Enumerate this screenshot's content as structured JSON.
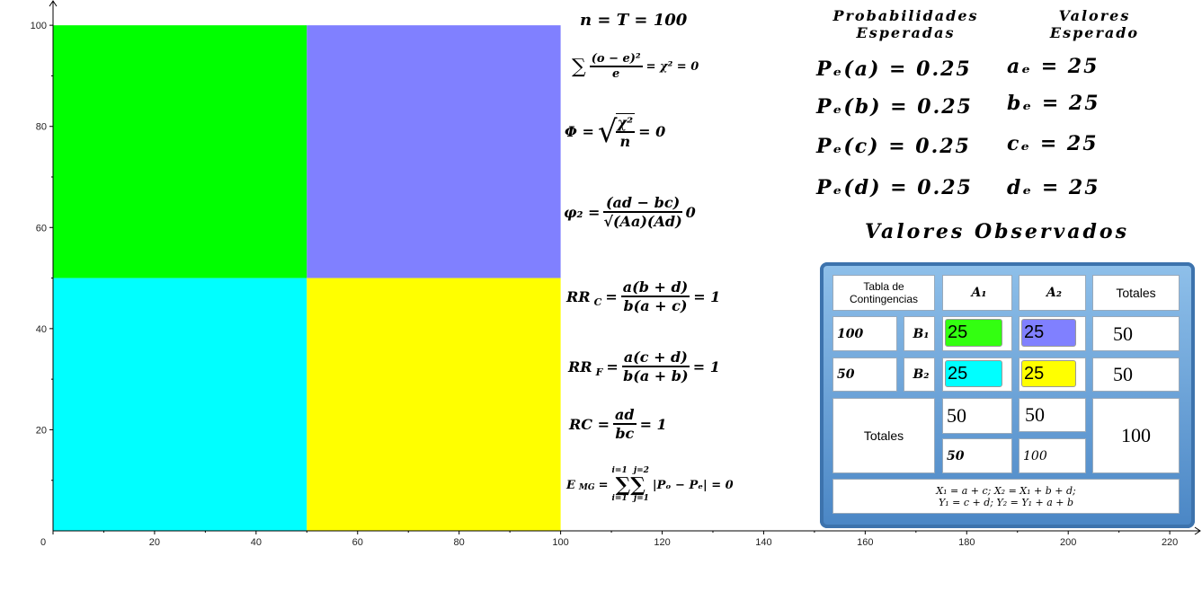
{
  "graphics": {
    "xlim": [
      0,
      226
    ],
    "ylim": [
      0,
      105
    ],
    "xticks": [
      0,
      20,
      40,
      60,
      80,
      100,
      120,
      140,
      160,
      180,
      200,
      220
    ],
    "yticks": [
      20,
      40,
      60,
      80,
      100
    ],
    "rects": [
      {
        "x": [
          0,
          50
        ],
        "y": [
          50,
          100
        ],
        "color": "#00ff00"
      },
      {
        "x": [
          50,
          100
        ],
        "y": [
          50,
          100
        ],
        "color": "#8080ff"
      },
      {
        "x": [
          0,
          50
        ],
        "y": [
          0,
          50
        ],
        "color": "#00ffff"
      },
      {
        "x": [
          50,
          100
        ],
        "y": [
          0,
          50
        ],
        "color": "#ffff00"
      }
    ]
  },
  "formulas": [
    {
      "text": "n = T = 100"
    },
    {
      "pre": "∑",
      "num": "(o − e)²",
      "den": "e",
      "post": "= χ² = 0"
    },
    {
      "pre": "Φ =",
      "root": "√",
      "num": "χ²",
      "den": "n",
      "post": "= 0"
    },
    {
      "pre": "φ₂ =",
      "num": "(ad − bc)",
      "den": "√(Aa)(Ad)",
      "post": "0"
    },
    {
      "pre": "RR",
      "sub": "C",
      "mid": "=",
      "num": "a(b + d)",
      "den": "b(a + c)",
      "post": "= 1"
    },
    {
      "pre": "RR",
      "sub": "F",
      "mid": "=",
      "num": "a(c + d)",
      "den": "b(a + b)",
      "post": "= 1"
    },
    {
      "pre": "RC =",
      "num": "ad",
      "den": "bc",
      "post": "= 1"
    },
    {
      "pre": "E",
      "sub": "MG",
      "mid": "=",
      "top": [
        "i=1",
        "j=2"
      ],
      "sum": "∑∑",
      "bottom": [
        "i=1",
        "j=1"
      ],
      "post": "|Pₒ − Pₑ| = 0"
    }
  ],
  "expected": {
    "prob_title": "Probabilidades Esperadas",
    "value_title": "Valores Esperado",
    "probs": [
      "Pₑ(a) = 0.25",
      "Pₑ(b) = 0.25",
      "Pₑ(c) = 0.25",
      "Pₑ(d) = 0.25"
    ],
    "values": [
      "aₑ = 25",
      "bₑ = 25",
      "cₑ = 25",
      "dₑ = 25"
    ]
  },
  "observed": {
    "title": "Valores Observados",
    "header": [
      "Tabla de Contingencias",
      "A₁",
      "A₂",
      "Totales"
    ],
    "rows": [
      [
        100,
        "B₁",
        25,
        25,
        50
      ],
      [
        50,
        "B₂",
        25,
        25,
        50
      ]
    ],
    "totals": {
      "label": "Totales",
      "a1": [
        50,
        50
      ],
      "a2": [
        50,
        100
      ],
      "total": 100
    },
    "notes": [
      "X₁ = a + c;  X₂ = X₁ + b + d;",
      "Y₁ = c + d;  Y₂ = Y₁ + a + b"
    ]
  }
}
